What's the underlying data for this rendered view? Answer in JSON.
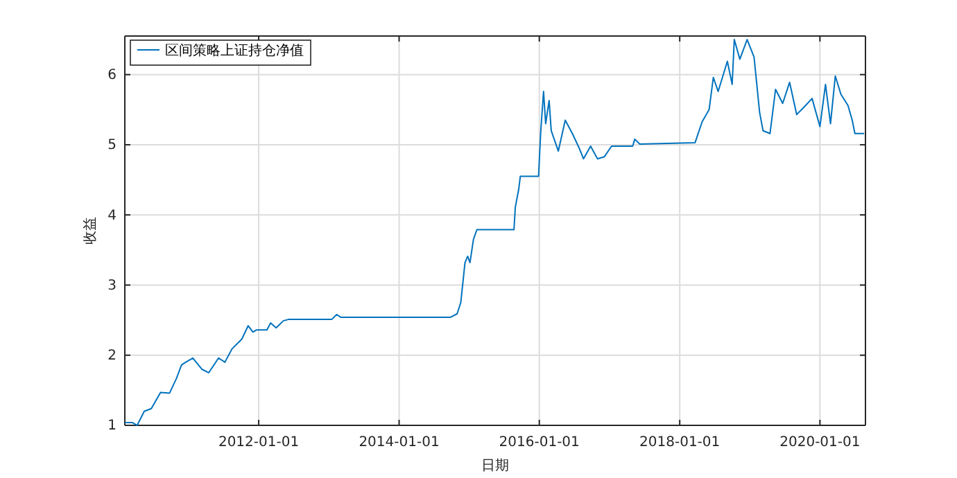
{
  "chart_data": {
    "type": "line",
    "xlabel": "日期",
    "ylabel": "收益",
    "legend": "top left",
    "grid": true,
    "x": [
      "2010-02-03",
      "2010-03-14",
      "2010-04-08",
      "2010-05-15",
      "2010-06-21",
      "2010-08-08",
      "2010-09-24",
      "2010-10-30",
      "2010-11-25",
      "2010-12-17",
      "2011-01-23",
      "2011-03-11",
      "2011-04-16",
      "2011-06-06",
      "2011-07-09",
      "2011-08-15",
      "2011-10-05",
      "2011-11-07",
      "2011-12-02",
      "2011-12-20",
      "2012-02-13",
      "2012-03-03",
      "2012-04-01",
      "2012-05-08",
      "2012-06-03",
      "2013-01-15",
      "2013-02-10",
      "2013-03-04",
      "2014-09-24",
      "2014-10-30",
      "2014-11-18",
      "2014-12-10",
      "2014-12-24",
      "2015-01-05",
      "2015-01-23",
      "2015-02-10",
      "2015-08-22",
      "2015-08-29",
      "2015-09-16",
      "2015-09-24",
      "2015-12-28",
      "2016-01-08",
      "2016-01-23",
      "2016-02-03",
      "2016-02-21",
      "2016-03-03",
      "2016-04-09",
      "2016-05-15",
      "2016-06-21",
      "2016-07-27",
      "2016-08-18",
      "2016-09-24",
      "2016-10-30",
      "2016-12-05",
      "2017-01-11",
      "2017-05-01",
      "2017-05-12",
      "2017-06-07",
      "2018-03-22",
      "2018-04-28",
      "2018-06-03",
      "2018-06-25",
      "2018-07-20",
      "2018-09-06",
      "2018-10-01",
      "2018-10-12",
      "2018-11-10",
      "2018-12-18",
      "2019-01-23",
      "2019-02-21",
      "2019-03-11",
      "2019-04-16",
      "2019-05-15",
      "2019-06-21",
      "2019-07-27",
      "2019-09-02",
      "2019-10-08",
      "2019-11-21",
      "2020-01-01",
      "2020-01-30",
      "2020-02-25",
      "2020-03-21",
      "2020-04-19",
      "2020-05-26",
      "2020-06-17",
      "2020-07-01",
      "2020-08-18"
    ],
    "series": [
      {
        "name": "区间策略上证持仓净值",
        "color": "#0072bd",
        "values": [
          1.04,
          1.04,
          1.0,
          1.2,
          1.24,
          1.47,
          1.46,
          1.67,
          1.86,
          1.9,
          1.96,
          1.8,
          1.75,
          1.96,
          1.9,
          2.09,
          2.23,
          2.42,
          2.33,
          2.36,
          2.36,
          2.46,
          2.39,
          2.49,
          2.51,
          2.51,
          2.58,
          2.54,
          2.54,
          2.59,
          2.75,
          3.32,
          3.41,
          3.32,
          3.65,
          3.79,
          3.79,
          4.11,
          4.37,
          4.55,
          4.55,
          5.17,
          5.76,
          5.3,
          5.63,
          5.2,
          4.91,
          5.35,
          5.16,
          4.95,
          4.8,
          4.98,
          4.8,
          4.83,
          4.98,
          4.98,
          5.08,
          5.01,
          5.03,
          5.33,
          5.5,
          5.96,
          5.76,
          6.19,
          5.86,
          6.5,
          6.22,
          6.5,
          6.25,
          5.46,
          5.2,
          5.16,
          5.79,
          5.59,
          5.89,
          5.43,
          5.53,
          5.66,
          5.26,
          5.86,
          5.3,
          5.98,
          5.72,
          5.56,
          5.35,
          5.16,
          5.16
        ]
      }
    ],
    "xlim": [
      "2010-02-03",
      "2020-08-25"
    ],
    "xticks": [
      "2012-01-01",
      "2014-01-01",
      "2016-01-01",
      "2018-01-01",
      "2020-01-01"
    ],
    "ylim": [
      1,
      6.55
    ],
    "yticks": [
      1,
      2,
      3,
      4,
      5,
      6
    ]
  }
}
